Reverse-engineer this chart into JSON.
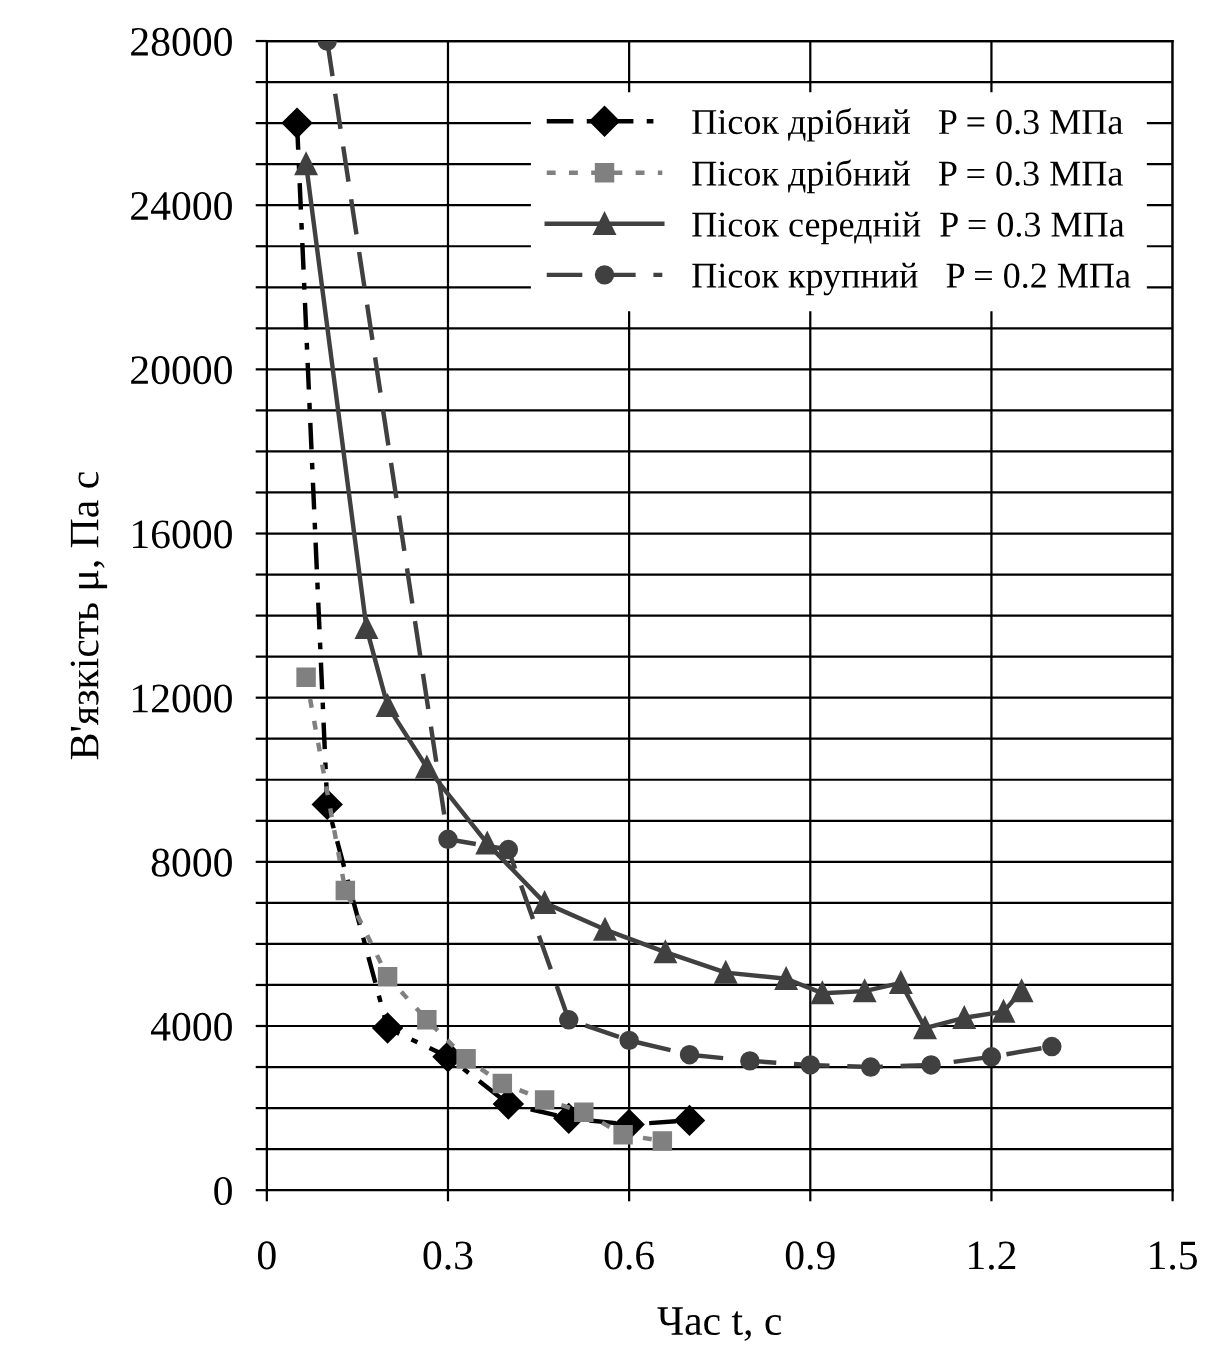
{
  "chart_data": {
    "type": "line",
    "xlabel": "Час t, с",
    "ylabel": "В'язкість μ, Па с",
    "xlim": [
      0,
      1.5
    ],
    "xticks": [
      0,
      0.3,
      0.6,
      0.9,
      1.2,
      1.5
    ],
    "ylim": [
      0,
      28000
    ],
    "yticks": [
      0,
      {
        "value": 1000,
        "label": null
      },
      {
        "value": 2000,
        "label": null
      },
      {
        "value": 3000,
        "label": null
      },
      4000,
      {
        "value": 5000,
        "label": null
      },
      {
        "value": 6000,
        "label": null
      },
      {
        "value": 7000,
        "label": null
      },
      8000,
      {
        "value": 9000,
        "label": null
      },
      {
        "value": 10000,
        "label": null
      },
      {
        "value": 11000,
        "label": null
      },
      12000,
      {
        "value": 13000,
        "label": null
      },
      {
        "value": 14000,
        "label": null
      },
      {
        "value": 15000,
        "label": null
      },
      16000,
      {
        "value": 17000,
        "label": null
      },
      {
        "value": 18000,
        "label": null
      },
      {
        "value": 19000,
        "label": null
      },
      20000,
      {
        "value": 21000,
        "label": null
      },
      {
        "value": 22000,
        "label": null
      },
      {
        "value": 23000,
        "label": null
      },
      24000,
      {
        "value": 25000,
        "label": null
      },
      {
        "value": 26000,
        "label": null
      },
      {
        "value": 27000,
        "label": null
      },
      28000
    ],
    "grid": true,
    "legend": "top right",
    "series": [
      {
        "name": "Пісок дрібний   P = 0.3 МПа",
        "color": "#000000",
        "marker": "diamond",
        "line_style": "dashdot",
        "x": [
          0.05,
          0.1,
          0.2,
          0.3,
          0.4,
          0.5,
          0.6,
          0.7
        ],
        "values": [
          26000,
          9400,
          3950,
          3250,
          2100,
          1750,
          1600,
          1700
        ]
      },
      {
        "name": "Пісок дрібний   P = 0.3 МПа",
        "color": "#808080",
        "marker": "square",
        "line_style": "dotted",
        "x": [
          0.065,
          0.13,
          0.2,
          0.265,
          0.33,
          0.39,
          0.46,
          0.525,
          0.59,
          0.655
        ],
        "values": [
          12500,
          7300,
          5200,
          4150,
          3200,
          2600,
          2200,
          1900,
          1350,
          1200
        ]
      },
      {
        "name": "Пісок середній  P = 0.3 МПа",
        "color": "#404040",
        "marker": "triangle",
        "line_style": "solid",
        "x": [
          0.065,
          0.165,
          0.2,
          0.265,
          0.365,
          0.46,
          0.56,
          0.66,
          0.76,
          0.86,
          0.92,
          0.99,
          1.05,
          1.09,
          1.155,
          1.22,
          1.25
        ],
        "values": [
          25000,
          13700,
          11800,
          10300,
          8450,
          7000,
          6350,
          5800,
          5300,
          5150,
          4800,
          4850,
          5050,
          3950,
          4200,
          4350,
          4850
        ]
      },
      {
        "name": "Пісок крупний   P = 0.2 МПа",
        "color": "#404040",
        "marker": "circle",
        "line_style": "dashed",
        "x": [
          0.1,
          0.3,
          0.4,
          0.5,
          0.6,
          0.7,
          0.8,
          0.9,
          1.0,
          1.1,
          1.2,
          1.3
        ],
        "values": [
          28000,
          8550,
          8300,
          4150,
          3650,
          3300,
          3150,
          3050,
          3000,
          3050,
          3250,
          3500
        ]
      }
    ]
  }
}
